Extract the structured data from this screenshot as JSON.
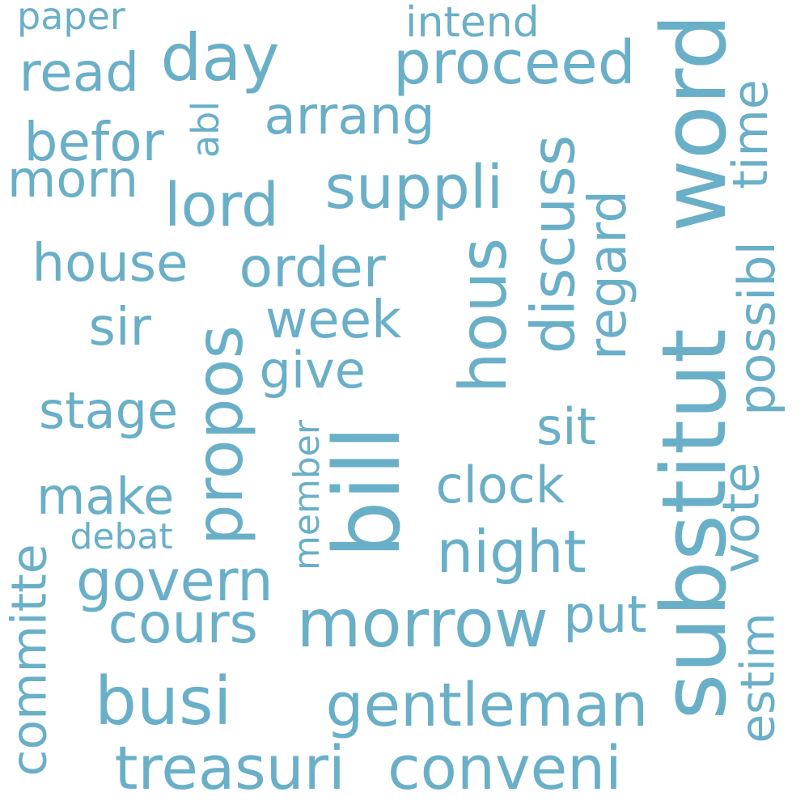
{
  "cloud": {
    "color": "#6aafc8",
    "words": [
      {
        "id": "substitut",
        "text": "substitut"
      },
      {
        "id": "word",
        "text": "word"
      },
      {
        "id": "bill",
        "text": "bill"
      },
      {
        "id": "busi",
        "text": "busi"
      },
      {
        "id": "morrow",
        "text": "morrow"
      },
      {
        "id": "gentleman",
        "text": "gentleman"
      },
      {
        "id": "treasuri",
        "text": "treasuri"
      },
      {
        "id": "conveni",
        "text": "conveni"
      },
      {
        "id": "propos",
        "text": "propos"
      },
      {
        "id": "hous",
        "text": "hous"
      },
      {
        "id": "day",
        "text": "day"
      },
      {
        "id": "proceed",
        "text": "proceed"
      },
      {
        "id": "lord",
        "text": "lord"
      },
      {
        "id": "suppli",
        "text": "suppli"
      },
      {
        "id": "discuss",
        "text": "discuss"
      },
      {
        "id": "night",
        "text": "night"
      },
      {
        "id": "govern",
        "text": "govern"
      },
      {
        "id": "cours",
        "text": "cours"
      },
      {
        "id": "order",
        "text": "order"
      },
      {
        "id": "read",
        "text": "read"
      },
      {
        "id": "befor",
        "text": "befor"
      },
      {
        "id": "morn",
        "text": "morn"
      },
      {
        "id": "arrang",
        "text": "arrang"
      },
      {
        "id": "house",
        "text": "house"
      },
      {
        "id": "sir",
        "text": "sir"
      },
      {
        "id": "week",
        "text": "week"
      },
      {
        "id": "give",
        "text": "give"
      },
      {
        "id": "stage",
        "text": "stage"
      },
      {
        "id": "make",
        "text": "make"
      },
      {
        "id": "clock",
        "text": "clock"
      },
      {
        "id": "sit",
        "text": "sit"
      },
      {
        "id": "put",
        "text": "put"
      },
      {
        "id": "regard",
        "text": "regard"
      },
      {
        "id": "possibl",
        "text": "possibl"
      },
      {
        "id": "vote",
        "text": "vote"
      },
      {
        "id": "time",
        "text": "time"
      },
      {
        "id": "estim",
        "text": "estim"
      },
      {
        "id": "committe",
        "text": "committe"
      },
      {
        "id": "intend",
        "text": "intend"
      },
      {
        "id": "paper",
        "text": "paper"
      },
      {
        "id": "abl",
        "text": "abl"
      },
      {
        "id": "member",
        "text": "member"
      },
      {
        "id": "debat",
        "text": "debat"
      }
    ]
  }
}
